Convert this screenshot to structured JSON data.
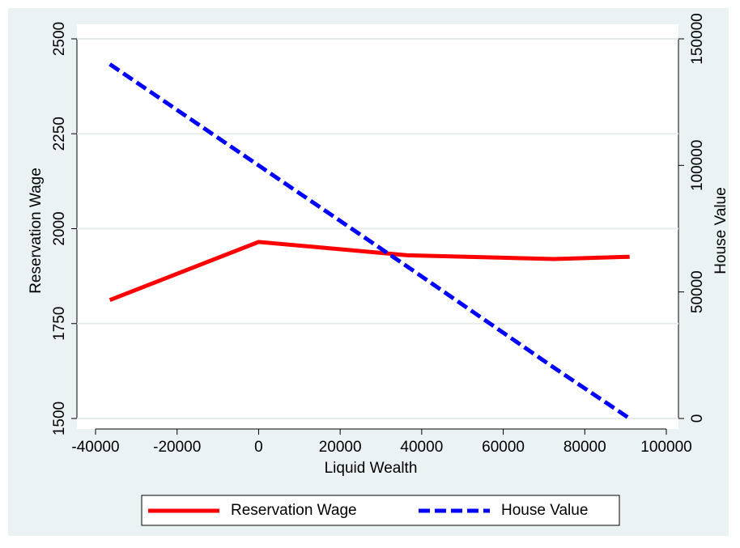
{
  "chart_data": {
    "type": "line",
    "x_label": "Liquid Wealth",
    "y_label": "Reservation Wage",
    "y2_label": "House Value",
    "x": [
      -36500,
      0,
      36500,
      72500,
      91000
    ],
    "series": [
      {
        "name": "Reservation Wage",
        "color": "#ff0000",
        "values": [
          1812,
          1965,
          1930,
          1920,
          1926
        ]
      },
      {
        "name": "House Value",
        "color": "#0000ff",
        "axis": "y2",
        "dashed": true,
        "values": [
          140000,
          100000,
          60000,
          20000,
          0
        ]
      }
    ],
    "xlim": [
      -40000,
      100000
    ],
    "xticks": [
      -40000,
      -20000,
      0,
      20000,
      40000,
      60000,
      80000,
      100000
    ],
    "ylim": [
      1500,
      2500
    ],
    "yticks": [
      1500,
      1750,
      2000,
      2250,
      2500
    ],
    "y2lim": [
      0,
      150000
    ],
    "y2ticks": [
      0,
      50000,
      100000,
      150000
    ],
    "grid": true,
    "legend": "bottom"
  }
}
